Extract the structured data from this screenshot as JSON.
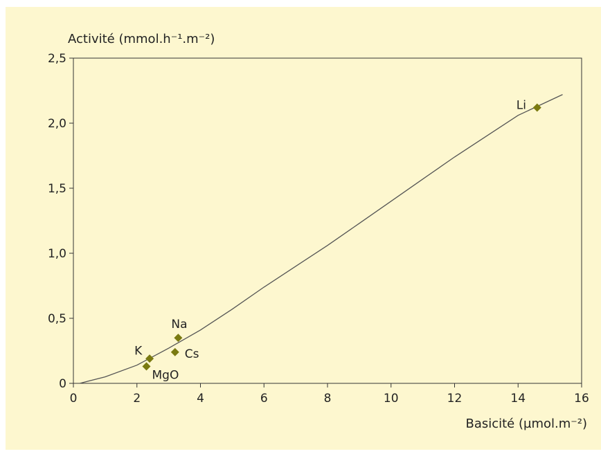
{
  "chart_data": {
    "type": "scatter",
    "title": "",
    "ylabel": "Activité (mmol.h⁻¹.m⁻²)",
    "xlabel": "Basicité (µmol.m⁻²)",
    "xlim": [
      0,
      16
    ],
    "ylim": [
      0,
      2.5
    ],
    "xticks": [
      0,
      2,
      4,
      6,
      8,
      10,
      12,
      14,
      16
    ],
    "xtick_labels": [
      "0",
      "2",
      "4",
      "6",
      "8",
      "10",
      "12",
      "14",
      "16"
    ],
    "yticks": [
      0,
      0.5,
      1.0,
      1.5,
      2.0,
      2.5
    ],
    "ytick_labels": [
      "0",
      "0,5",
      "1,0",
      "1,5",
      "2,0",
      "2,5"
    ],
    "grid": false,
    "points": [
      {
        "label": "K",
        "x": 2.4,
        "y": 0.19
      },
      {
        "label": "MgO",
        "x": 2.3,
        "y": 0.13
      },
      {
        "label": "Na",
        "x": 3.3,
        "y": 0.35
      },
      {
        "label": "Cs",
        "x": 3.2,
        "y": 0.24
      },
      {
        "label": "Li",
        "x": 14.6,
        "y": 2.12
      }
    ],
    "trend_line": {
      "x": [
        0.2,
        1,
        2,
        3,
        4,
        5,
        6,
        7,
        8,
        9,
        10,
        11,
        12,
        13,
        14,
        15.4
      ],
      "y": [
        0.0,
        0.05,
        0.14,
        0.27,
        0.41,
        0.57,
        0.74,
        0.9,
        1.06,
        1.23,
        1.4,
        1.57,
        1.74,
        1.9,
        2.06,
        2.22
      ]
    },
    "colors": {
      "marker": "#7a7a10",
      "line": "#555555",
      "axis": "#333333",
      "background": "#fdf7cf"
    }
  }
}
